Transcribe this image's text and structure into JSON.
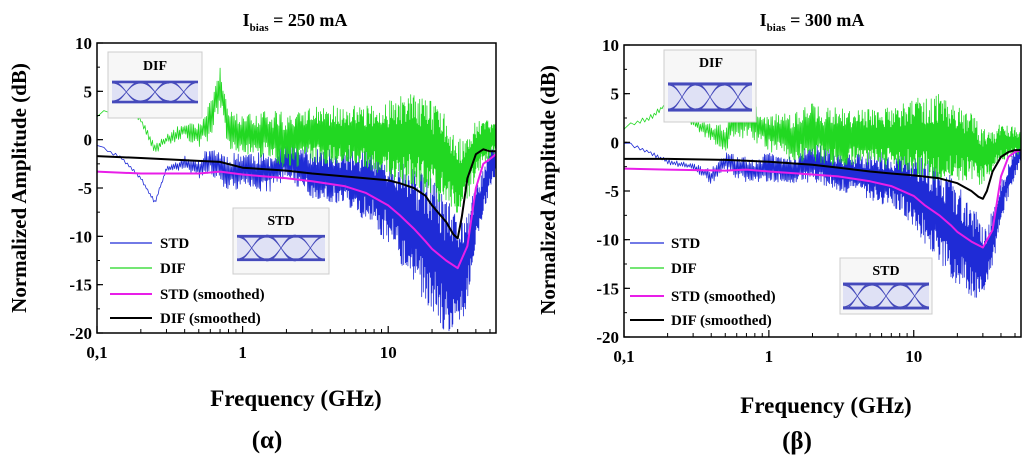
{
  "chart_data": [
    {
      "type": "line",
      "title_main": "I",
      "title_sub": "bias",
      "title_rest": " = 250 mA",
      "panel_label": "(α)",
      "xlabel": "Frequency (GHz)",
      "ylabel": "Normalized Amplitude (dB)",
      "xscale": "log",
      "xlim": [
        0.1,
        55
      ],
      "ylim": [
        -20,
        10
      ],
      "x_ticks": [
        {
          "v": 0.1,
          "label": "0,1"
        },
        {
          "v": 1,
          "label": "1"
        },
        {
          "v": 10,
          "label": "10"
        }
      ],
      "y_ticks": [
        10,
        5,
        0,
        -5,
        -10,
        -15,
        -20
      ],
      "legend": [
        "STD",
        "DIF",
        "STD (smoothed)",
        "DIF (smoothed)"
      ],
      "legend_placement": "bottom-left",
      "eye_insets": [
        {
          "label": "DIF",
          "placement": "top-left"
        },
        {
          "label": "STD",
          "placement": "middle"
        }
      ],
      "colors": {
        "STD": "#1f2bd6",
        "DIF": "#22d822",
        "STD (smoothed)": "#e81ee8",
        "DIF (smoothed)": "#000000"
      },
      "series": [
        {
          "name": "STD",
          "x": [
            0.1,
            0.15,
            0.2,
            0.25,
            0.3,
            0.4,
            0.5,
            0.6,
            0.8,
            1,
            1.5,
            2,
            3,
            5,
            8,
            10,
            15,
            20,
            25,
            30,
            35,
            40,
            50,
            55
          ],
          "y": [
            -0.5,
            -2.0,
            -4.0,
            -6.5,
            -3.0,
            -2.5,
            -3.0,
            -2.0,
            -3.5,
            -3.0,
            -3.5,
            -2.0,
            -3.5,
            -4.0,
            -5.0,
            -6.0,
            -9.0,
            -11.0,
            -13.0,
            -14.0,
            -12.0,
            -8.0,
            -3.0,
            -2.0
          ],
          "noise": [
            0.2,
            0.2,
            0.2,
            0.2,
            0.2,
            0.8,
            1.0,
            1.5,
            2.0,
            2.0,
            2.0,
            2.0,
            2.5,
            3.0,
            4.0,
            5.0,
            6.0,
            7.0,
            7.0,
            6.0,
            5.0,
            3.0,
            2.0,
            1.5
          ]
        },
        {
          "name": "DIF",
          "x": [
            0.1,
            0.15,
            0.2,
            0.25,
            0.3,
            0.4,
            0.5,
            0.6,
            0.7,
            0.8,
            1,
            1.5,
            2,
            3,
            5,
            8,
            10,
            15,
            20,
            25,
            30,
            35,
            40,
            50,
            55
          ],
          "y": [
            2.5,
            4.0,
            2.0,
            -1.0,
            0.0,
            1.0,
            0.5,
            2.0,
            5.5,
            1.0,
            0.5,
            0.5,
            0.0,
            0.5,
            0.5,
            0.0,
            0.0,
            0.0,
            -1.0,
            -2.0,
            -4.0,
            -3.0,
            -1.0,
            0.0,
            0.0
          ],
          "noise": [
            0.3,
            0.3,
            0.3,
            0.5,
            0.5,
            1.0,
            1.5,
            2.5,
            2.0,
            2.0,
            2.0,
            2.5,
            3.0,
            3.0,
            3.0,
            3.5,
            4.0,
            5.0,
            5.0,
            5.0,
            4.0,
            3.5,
            3.0,
            2.0,
            1.5
          ]
        },
        {
          "name": "STD (smoothed)",
          "x": [
            0.1,
            0.2,
            0.5,
            0.7,
            1,
            2,
            3,
            5,
            7,
            10,
            12,
            15,
            18,
            20,
            25,
            30,
            35,
            40,
            45,
            50,
            55
          ],
          "y": [
            -3.3,
            -3.5,
            -3.5,
            -3.3,
            -3.6,
            -4.0,
            -4.3,
            -4.8,
            -5.5,
            -6.8,
            -7.8,
            -9.2,
            -10.5,
            -11.3,
            -12.5,
            -13.3,
            -11.0,
            -5.0,
            -2.5,
            -2.0,
            -1.5
          ]
        },
        {
          "name": "DIF (smoothed)",
          "x": [
            0.1,
            0.2,
            0.5,
            0.7,
            1,
            2,
            3,
            5,
            7,
            10,
            12,
            15,
            18,
            20,
            25,
            28,
            30,
            32,
            35,
            40,
            45,
            50,
            55
          ],
          "y": [
            -1.7,
            -1.9,
            -2.2,
            -2.3,
            -2.9,
            -3.2,
            -3.5,
            -3.8,
            -4.0,
            -4.2,
            -4.5,
            -5.0,
            -5.8,
            -6.8,
            -8.5,
            -9.8,
            -10.2,
            -8.0,
            -4.0,
            -1.5,
            -1.0,
            -1.2,
            -1.2
          ]
        }
      ]
    },
    {
      "type": "line",
      "title_main": "I",
      "title_sub": "bias",
      "title_rest": " = 300 mA",
      "panel_label": "(β)",
      "xlabel": "Frequency (GHz)",
      "ylabel": "Normalized Amplitude (dB)",
      "xscale": "log",
      "xlim": [
        0.1,
        55
      ],
      "ylim": [
        -20,
        10
      ],
      "x_ticks": [
        {
          "v": 0.1,
          "label": "0,1"
        },
        {
          "v": 1,
          "label": "1"
        },
        {
          "v": 10,
          "label": "10"
        }
      ],
      "y_ticks": [
        10,
        5,
        0,
        -5,
        -10,
        -15,
        -20
      ],
      "legend": [
        "STD",
        "DIF",
        "STD (smoothed)",
        "DIF (smoothed)"
      ],
      "legend_placement": "bottom-left",
      "eye_insets": [
        {
          "label": "DIF",
          "placement": "top-left"
        },
        {
          "label": "STD",
          "placement": "bottom-right"
        }
      ],
      "colors": {
        "STD": "#1f2bd6",
        "DIF": "#22d822",
        "STD (smoothed)": "#e81ee8",
        "DIF (smoothed)": "#000000"
      },
      "series": [
        {
          "name": "STD",
          "x": [
            0.1,
            0.15,
            0.2,
            0.3,
            0.4,
            0.5,
            0.6,
            0.8,
            1,
            1.5,
            2,
            3,
            5,
            8,
            10,
            15,
            20,
            25,
            30,
            35,
            40,
            50,
            55
          ],
          "y": [
            0.0,
            -1.0,
            -2.0,
            -2.5,
            -3.5,
            -2.0,
            -2.5,
            -3.0,
            -2.5,
            -3.0,
            -2.0,
            -3.0,
            -3.5,
            -4.0,
            -5.0,
            -7.5,
            -9.5,
            -11.0,
            -12.5,
            -10.0,
            -6.0,
            -2.0,
            -1.0
          ],
          "noise": [
            0.2,
            0.2,
            0.3,
            0.3,
            0.8,
            1.0,
            1.2,
            1.5,
            1.5,
            1.5,
            2.0,
            2.0,
            2.5,
            3.0,
            4.0,
            5.0,
            5.5,
            5.0,
            4.0,
            3.0,
            2.0,
            1.5,
            1.0
          ]
        },
        {
          "name": "DIF",
          "x": [
            0.1,
            0.15,
            0.2,
            0.3,
            0.4,
            0.5,
            0.6,
            0.8,
            1,
            1.5,
            2,
            3,
            5,
            8,
            10,
            15,
            20,
            25,
            30,
            35,
            40,
            50,
            55
          ],
          "y": [
            1.5,
            2.5,
            4.0,
            2.0,
            1.0,
            0.5,
            2.5,
            2.0,
            1.0,
            0.5,
            1.0,
            0.5,
            0.5,
            0.5,
            0.5,
            0.5,
            0.0,
            -0.5,
            -1.5,
            -1.0,
            0.0,
            0.0,
            0.0
          ],
          "noise": [
            0.3,
            0.3,
            0.3,
            0.5,
            1.0,
            1.5,
            2.0,
            2.0,
            2.0,
            2.5,
            3.0,
            3.0,
            3.0,
            3.5,
            4.0,
            4.5,
            4.0,
            3.5,
            3.0,
            2.0,
            2.0,
            1.5,
            1.0
          ]
        },
        {
          "name": "STD (smoothed)",
          "x": [
            0.1,
            0.2,
            0.5,
            0.7,
            1,
            2,
            3,
            5,
            7,
            10,
            12,
            15,
            18,
            20,
            25,
            30,
            35,
            40,
            45,
            50,
            55
          ],
          "y": [
            -2.7,
            -2.8,
            -2.9,
            -2.8,
            -3.0,
            -3.3,
            -3.5,
            -4.0,
            -4.5,
            -5.5,
            -6.5,
            -7.5,
            -8.5,
            -9.2,
            -10.2,
            -10.8,
            -9.0,
            -3.5,
            -1.5,
            -1.0,
            -0.8
          ]
        },
        {
          "name": "DIF (smoothed)",
          "x": [
            0.1,
            0.2,
            0.5,
            0.7,
            1,
            2,
            3,
            5,
            7,
            10,
            15,
            20,
            25,
            28,
            30,
            32,
            35,
            40,
            45,
            50,
            55
          ],
          "y": [
            -1.7,
            -1.7,
            -1.8,
            -1.9,
            -2.0,
            -2.3,
            -2.6,
            -3.0,
            -3.2,
            -3.4,
            -3.7,
            -4.2,
            -5.0,
            -5.6,
            -5.8,
            -5.0,
            -3.0,
            -1.5,
            -1.0,
            -0.8,
            -0.8
          ]
        }
      ]
    }
  ]
}
